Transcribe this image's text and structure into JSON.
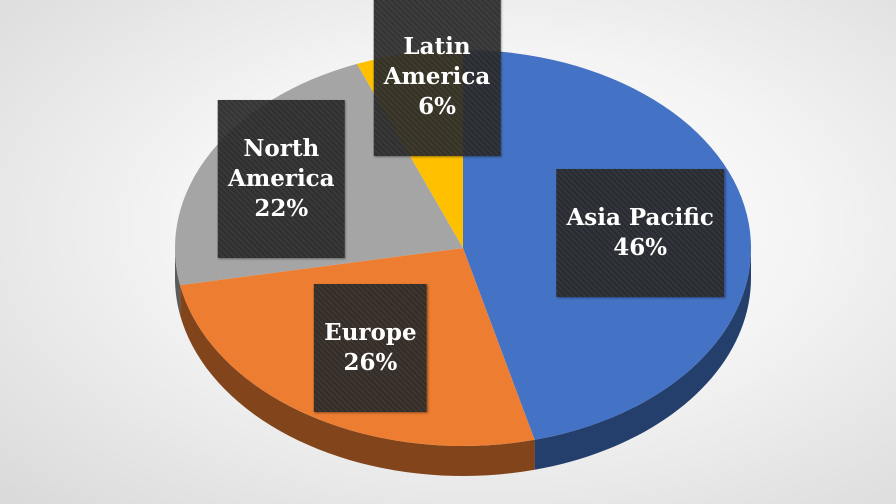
{
  "chart_data": {
    "type": "pie",
    "title": "",
    "style": "3d",
    "colors": {
      "Asia Pacific": "#4472C4",
      "Europe": "#ED7D31",
      "North America": "#A5A5A5",
      "Latin America": "#FFC000"
    },
    "slices": [
      {
        "label": "Asia Pacific",
        "label_lines": "Asia Pacific",
        "value": 46,
        "value_label": "46%"
      },
      {
        "label": "Europe",
        "label_lines": "Europe",
        "value": 26,
        "value_label": "26%"
      },
      {
        "label": "North America",
        "label_lines": "North\nAmerica",
        "value": 22,
        "value_label": "22%"
      },
      {
        "label": "Latin America",
        "label_lines": "Latin\nAmerica",
        "value": 6,
        "value_label": "6%"
      }
    ]
  }
}
